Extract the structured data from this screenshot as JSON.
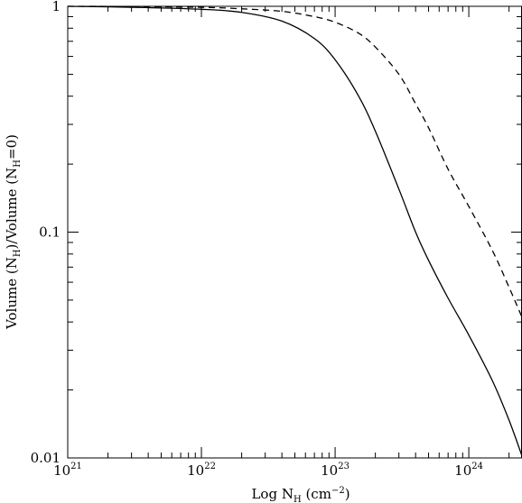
{
  "chart_data": {
    "type": "line",
    "title": "",
    "xlabel": {
      "main": "Log N",
      "sub": "H",
      "tail": " (cm",
      "sup": "−2",
      "end": ")"
    },
    "ylabel": {
      "p1": "Volume (N",
      "sub1": "H",
      "p2": ")/Volume (N",
      "sub2": "H",
      "p3": "=0)"
    },
    "x_scale": "log",
    "y_scale": "log",
    "xlim": [
      1e+21,
      2.5e+24
    ],
    "ylim": [
      0.01,
      1
    ],
    "x_ticks": [
      {
        "value": 1e+21,
        "base": "10",
        "exp": "21"
      },
      {
        "value": 1e+22,
        "base": "10",
        "exp": "22"
      },
      {
        "value": 1e+23,
        "base": "10",
        "exp": "23"
      },
      {
        "value": 1e+24,
        "base": "10",
        "exp": "24"
      }
    ],
    "y_ticks": [
      {
        "value": 1,
        "label": "1"
      },
      {
        "value": 0.1,
        "label": "0.1"
      },
      {
        "value": 0.01,
        "label": "0.01"
      }
    ],
    "grid": false,
    "legend": "none",
    "series": [
      {
        "style": "solid",
        "color": "#000000",
        "x": [
          1e+21,
          3e+21,
          1e+22,
          2e+22,
          4e+22,
          7e+22,
          1e+23,
          1.5e+23,
          2e+23,
          3e+23,
          4e+23,
          5e+23,
          7e+23,
          1e+24,
          1.5e+24,
          2e+24,
          2.5e+24
        ],
        "y": [
          1.0,
          0.99,
          0.97,
          0.94,
          0.86,
          0.72,
          0.58,
          0.4,
          0.28,
          0.155,
          0.1,
          0.075,
          0.051,
          0.035,
          0.022,
          0.0147,
          0.0102
        ]
      },
      {
        "style": "dashed",
        "color": "#000000",
        "x": [
          1e+21,
          3e+21,
          1e+22,
          2e+22,
          4e+22,
          7e+22,
          1e+23,
          1.5e+23,
          2e+23,
          3e+23,
          4e+23,
          5e+23,
          7e+23,
          1e+24,
          1.5e+24,
          2e+24,
          2.5e+24
        ],
        "y": [
          1.0,
          0.998,
          0.99,
          0.975,
          0.95,
          0.9,
          0.85,
          0.76,
          0.66,
          0.5,
          0.37,
          0.29,
          0.19,
          0.13,
          0.083,
          0.057,
          0.042
        ]
      }
    ]
  }
}
